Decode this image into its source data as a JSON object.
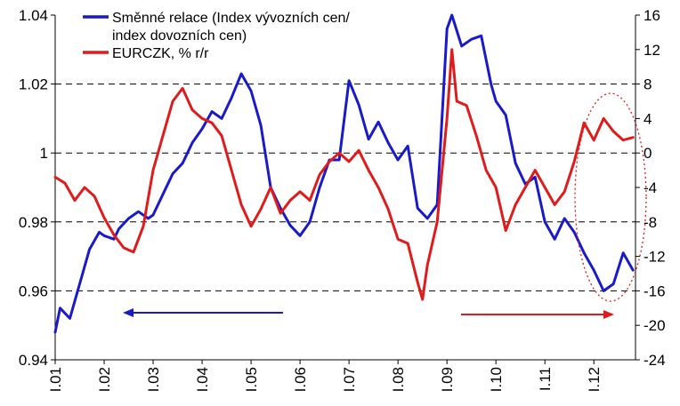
{
  "chart_data": {
    "type": "line",
    "grid": "horizontal dashed",
    "legend_position": "top-left",
    "x_tick_labels": [
      "I.01",
      "I.02",
      "I.03",
      "I.04",
      "I.05",
      "I.06",
      "I.07",
      "I.08",
      "I.09",
      "I.10",
      "I.11",
      "I.12"
    ],
    "y_left": {
      "range": [
        0.94,
        1.04
      ],
      "ticks": [
        "0.94",
        "0.96",
        "0.98",
        "1",
        "1.02",
        "1.04"
      ]
    },
    "y_right": {
      "range": [
        -24,
        16
      ],
      "ticks": [
        "-24",
        "-20",
        "-16",
        "-12",
        "-8",
        "-4",
        "0",
        "4",
        "8",
        "12",
        "16"
      ]
    },
    "legend": [
      {
        "line1": "Směnné relace (Index vývozních cen/",
        "line2": "index dovozních cen)",
        "color": "#1a1ac8"
      },
      {
        "line1": "EURCZK, % r/r",
        "line2": "",
        "color": "#e01b1b"
      }
    ],
    "series": [
      {
        "name": "Směnné relace (Index vývozních cen/index dovozních cen)",
        "axis": "left",
        "color": "#1a1ac8",
        "x": [
          2001.0,
          2001.1,
          2001.3,
          2001.5,
          2001.7,
          2001.9,
          2002.0,
          2002.2,
          2002.3,
          2002.5,
          2002.7,
          2002.9,
          2003.0,
          2003.2,
          2003.4,
          2003.6,
          2003.8,
          2004.0,
          2004.2,
          2004.4,
          2004.6,
          2004.8,
          2005.0,
          2005.2,
          2005.4,
          2005.6,
          2005.8,
          2006.0,
          2006.2,
          2006.4,
          2006.6,
          2006.8,
          2007.0,
          2007.2,
          2007.4,
          2007.6,
          2007.8,
          2008.0,
          2008.2,
          2008.4,
          2008.6,
          2008.8,
          2009.0,
          2009.1,
          2009.3,
          2009.5,
          2009.7,
          2009.9,
          2010.0,
          2010.2,
          2010.4,
          2010.6,
          2010.8,
          2011.0,
          2011.2,
          2011.4,
          2011.6,
          2011.8,
          2012.0,
          2012.2,
          2012.4,
          2012.6,
          2012.8
        ],
        "values": [
          0.948,
          0.955,
          0.952,
          0.962,
          0.972,
          0.977,
          0.976,
          0.975,
          0.978,
          0.981,
          0.983,
          0.981,
          0.982,
          0.988,
          0.994,
          0.997,
          1.003,
          1.007,
          1.012,
          1.01,
          1.016,
          1.023,
          1.018,
          1.008,
          0.99,
          0.984,
          0.979,
          0.976,
          0.98,
          0.99,
          0.998,
          0.998,
          1.021,
          1.014,
          1.004,
          1.009,
          1.003,
          0.998,
          1.002,
          0.984,
          0.981,
          0.985,
          1.036,
          1.04,
          1.031,
          1.033,
          1.034,
          1.02,
          1.015,
          1.011,
          0.997,
          0.991,
          0.993,
          0.98,
          0.975,
          0.981,
          0.977,
          0.971,
          0.966,
          0.96,
          0.962,
          0.971,
          0.966
        ]
      },
      {
        "name": "EURCZK, % r/r",
        "axis": "right",
        "color": "#e01b1b",
        "x": [
          2001.0,
          2001.2,
          2001.4,
          2001.6,
          2001.8,
          2002.0,
          2002.2,
          2002.4,
          2002.6,
          2002.8,
          2003.0,
          2003.2,
          2003.4,
          2003.6,
          2003.8,
          2004.0,
          2004.2,
          2004.4,
          2004.6,
          2004.8,
          2005.0,
          2005.2,
          2005.4,
          2005.6,
          2005.8,
          2006.0,
          2006.2,
          2006.4,
          2006.6,
          2006.8,
          2007.0,
          2007.2,
          2007.4,
          2007.6,
          2007.8,
          2008.0,
          2008.2,
          2008.4,
          2008.5,
          2008.6,
          2008.8,
          2009.0,
          2009.1,
          2009.2,
          2009.4,
          2009.6,
          2009.8,
          2010.0,
          2010.2,
          2010.4,
          2010.6,
          2010.8,
          2011.0,
          2011.2,
          2011.4,
          2011.6,
          2011.8,
          2012.0,
          2012.2,
          2012.4,
          2012.6,
          2012.8
        ],
        "values": [
          -2.8,
          -3.5,
          -5.5,
          -4.0,
          -5.0,
          -7.5,
          -9.5,
          -11.0,
          -11.5,
          -8.5,
          -2.0,
          2.0,
          6.0,
          7.5,
          5.0,
          4.0,
          3.5,
          2.0,
          -2.0,
          -6.0,
          -8.5,
          -6.5,
          -4.0,
          -7.0,
          -5.5,
          -4.5,
          -5.5,
          -2.5,
          -1.0,
          0.0,
          -1.0,
          0.3,
          -2.0,
          -4.0,
          -6.5,
          -10.0,
          -10.5,
          -15.0,
          -17.0,
          -13.0,
          -8.0,
          4.0,
          12.0,
          6.0,
          5.5,
          2.0,
          -2.0,
          -4.0,
          -9.0,
          -6.0,
          -4.0,
          -2.0,
          -4.0,
          -6.0,
          -4.5,
          -1.0,
          3.5,
          1.5,
          4.0,
          2.5,
          1.5,
          1.8
        ]
      }
    ],
    "annotations": [
      {
        "type": "arrow",
        "direction": "left",
        "color": "#1a1ac8"
      },
      {
        "type": "arrow",
        "direction": "right",
        "color": "#e01b1b"
      },
      {
        "type": "dotted-ellipse",
        "color": "#e01b1b"
      }
    ]
  }
}
